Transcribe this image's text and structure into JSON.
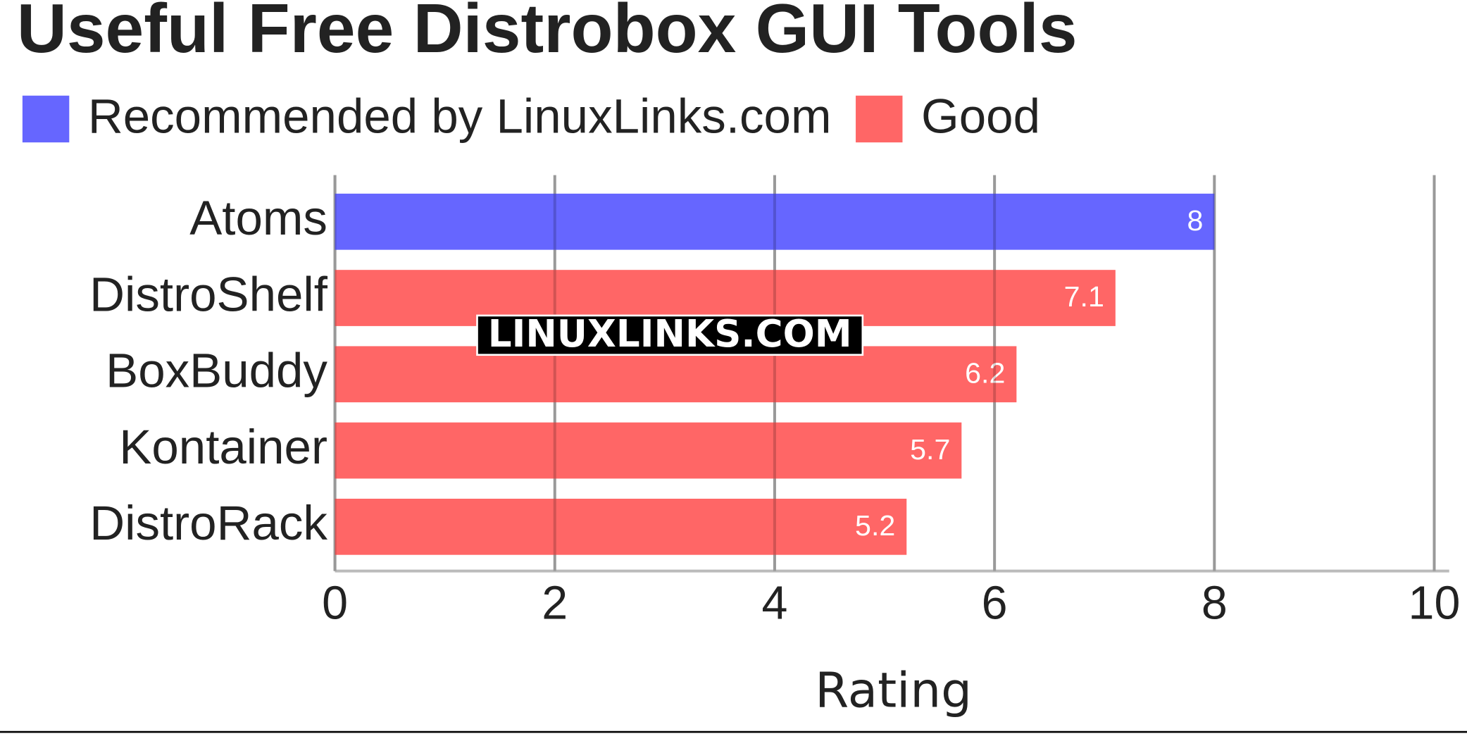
{
  "chart_data": {
    "type": "bar",
    "orientation": "horizontal",
    "title": "Useful Free Distrobox GUI Tools",
    "categories": [
      "Atoms",
      "DistroShelf",
      "BoxBuddy",
      "Kontainer",
      "DistroRack"
    ],
    "series": [
      {
        "name": "Recommended by LinuxLinks.com",
        "color": "#6666ff",
        "values": [
          8,
          null,
          null,
          null,
          null
        ]
      },
      {
        "name": "Good",
        "color": "#ff6666",
        "values": [
          null,
          7.1,
          6.2,
          5.7,
          5.2
        ]
      }
    ],
    "xlim": [
      0,
      10
    ],
    "xticks": [
      0,
      2,
      4,
      6,
      8,
      10
    ],
    "grid": true,
    "x_label": "Rating",
    "watermark": "LINUXLINKS.COM",
    "legend": "top-left"
  }
}
